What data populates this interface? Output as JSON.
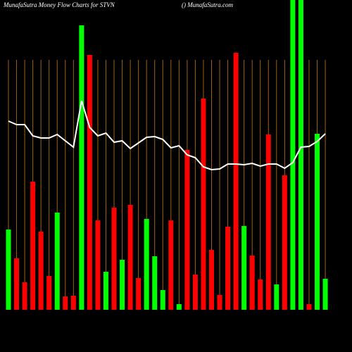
{
  "chart_data": {
    "type": "bar-line",
    "title": "MunafaSutra  Money Flow  Charts for STVN",
    "subtitle": "() MunafaSutra.com",
    "categories": [
      null,
      null,
      null,
      null,
      null,
      null,
      null,
      null,
      null,
      null,
      null,
      null,
      null,
      null,
      null,
      null,
      null,
      null,
      null,
      null,
      null,
      null,
      null,
      null,
      null,
      null,
      null,
      null,
      null,
      null,
      null,
      null,
      null,
      null,
      null,
      null,
      null,
      null,
      null,
      null
    ],
    "ylim": [
      0,
      440
    ],
    "grid_color": "#a0620a",
    "bars": {
      "values": [
        114,
        73,
        39,
        182,
        111,
        48,
        138,
        19,
        20,
        404,
        362,
        127,
        54,
        145,
        71,
        149,
        45,
        129,
        76,
        28,
        127,
        8,
        227,
        50,
        300,
        85,
        21,
        118,
        365,
        119,
        77,
        43,
        249,
        36,
        191,
        440,
        440,
        8,
        250,
        44
      ],
      "colors": [
        "#00ff00",
        "#ff0000",
        "#ff0000",
        "#ff0000",
        "#ff0000",
        "#ff0000",
        "#00ff00",
        "#ff0000",
        "#ff0000",
        "#00ff00",
        "#ff0000",
        "#ff0000",
        "#00ff00",
        "#ff0000",
        "#00ff00",
        "#ff0000",
        "#ff0000",
        "#00ff00",
        "#00ff00",
        "#00ff00",
        "#ff0000",
        "#00ff00",
        "#ff0000",
        "#ff0000",
        "#ff0000",
        "#ff0000",
        "#ff0000",
        "#ff0000",
        "#ff0000",
        "#00ff00",
        "#ff0000",
        "#ff0000",
        "#ff0000",
        "#00ff00",
        "#ff0000",
        "#00ff00",
        "#00ff00",
        "#ff0000",
        "#00ff00",
        "#00ff00"
      ]
    },
    "line": {
      "color": "#ffffff",
      "values": [
        268,
        263,
        263,
        247,
        244,
        244,
        249,
        240,
        231,
        297,
        259,
        247,
        251,
        238,
        240,
        229,
        237,
        245,
        246,
        242,
        230,
        233,
        220,
        216,
        203,
        199,
        200,
        207,
        207,
        206,
        208,
        204,
        207,
        207,
        201,
        209,
        231,
        232,
        239,
        250
      ]
    }
  }
}
